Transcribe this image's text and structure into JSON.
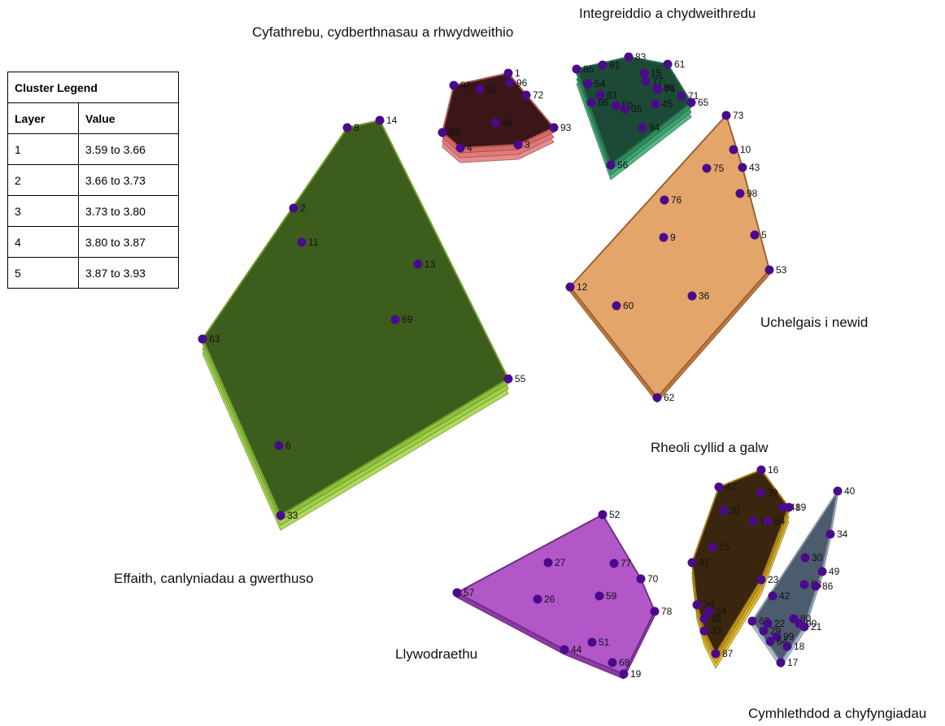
{
  "legend": {
    "title": "Cluster Legend",
    "col_layer": "Layer",
    "col_value": "Value",
    "rows": [
      {
        "layer": "1",
        "value": "3.59 to 3.66"
      },
      {
        "layer": "2",
        "value": "3.66 to 3.73"
      },
      {
        "layer": "3",
        "value": "3.73 to 3.80"
      },
      {
        "layer": "4",
        "value": "3.80 to 3.87"
      },
      {
        "layer": "5",
        "value": "3.87 to 3.93"
      }
    ]
  },
  "colors": {
    "point": "#4b0a8c"
  },
  "clusters": [
    {
      "name": "Cyfathrebu, cydberthnasau a rhwydweithio",
      "fill": "#3a1618",
      "layer_colors": [
        "#d96a6a",
        "#e07b7b",
        "#e88c8c"
      ],
      "points": [
        [
          "82",
          558,
          105
        ],
        [
          "92",
          590,
          110
        ],
        [
          "1",
          625,
          90
        ],
        [
          "96",
          627,
          102
        ],
        [
          "72",
          647,
          117
        ],
        [
          "46",
          609,
          151
        ],
        [
          "93",
          681,
          157
        ],
        [
          "84",
          544,
          163
        ],
        [
          "4",
          566,
          182
        ],
        [
          "3",
          637,
          178
        ]
      ]
    },
    {
      "name": "Integreiddio a chydweithredu",
      "fill": "#1c4a37",
      "layer_colors": [
        "#2e8e5f",
        "#3fa370",
        "#55b886"
      ],
      "points": [
        [
          "85",
          709,
          85
        ],
        [
          "91",
          741,
          80
        ],
        [
          "83",
          773,
          70
        ],
        [
          "61",
          821,
          79
        ],
        [
          "15",
          792,
          90
        ],
        [
          "54",
          723,
          103
        ],
        [
          "77",
          794,
          100
        ],
        [
          "74",
          809,
          110
        ],
        [
          "71",
          838,
          118
        ],
        [
          "65",
          850,
          126
        ],
        [
          "81",
          738,
          117
        ],
        [
          "88",
          808,
          108
        ],
        [
          "86",
          727,
          126
        ],
        [
          "50",
          757,
          130
        ],
        [
          "35",
          768,
          134
        ],
        [
          "45",
          806,
          128
        ],
        [
          "94",
          790,
          157
        ],
        [
          "56",
          751,
          203
        ]
      ]
    },
    {
      "name": "Uchelgais i newid",
      "fill": "#e3a56a",
      "layer_colors": [
        "#c27a3f"
      ],
      "points": [
        [
          "73",
          893,
          142
        ],
        [
          "10",
          902,
          184
        ],
        [
          "75",
          869,
          207
        ],
        [
          "43",
          913,
          206
        ],
        [
          "98",
          910,
          238
        ],
        [
          "76",
          817,
          246
        ],
        [
          "9",
          816,
          292
        ],
        [
          "5",
          928,
          289
        ],
        [
          "53",
          946,
          332
        ],
        [
          "12",
          701,
          353
        ],
        [
          "60",
          758,
          376
        ],
        [
          "36",
          851,
          364
        ],
        [
          "62",
          808,
          489
        ]
      ]
    },
    {
      "name": "Effaith, canlyniadau a gwerthuso",
      "fill": "#3d5d1c",
      "layer_colors": [
        "#8fc43a",
        "#9fd04a",
        "#b0dc5c"
      ],
      "points": [
        [
          "8",
          427,
          157
        ],
        [
          "14",
          467,
          148
        ],
        [
          "2",
          361,
          256
        ],
        [
          "11",
          371,
          298
        ],
        [
          "13",
          514,
          325
        ],
        [
          "69",
          486,
          393
        ],
        [
          "63",
          249,
          417
        ],
        [
          "55",
          625,
          466
        ],
        [
          "6",
          343,
          548
        ],
        [
          "33",
          345,
          634
        ]
      ]
    },
    {
      "name": "Llywodraethu",
      "fill": "#b157c8",
      "layer_colors": [
        "#8f3aa8"
      ],
      "points": [
        [
          "52",
          741,
          633
        ],
        [
          "27",
          674,
          692
        ],
        [
          "77",
          755,
          693
        ],
        [
          "70",
          788,
          712
        ],
        [
          "57",
          562,
          729
        ],
        [
          "26",
          661,
          737
        ],
        [
          "59",
          737,
          733
        ],
        [
          "78",
          805,
          752
        ],
        [
          "51",
          728,
          790
        ],
        [
          "44",
          694,
          799
        ],
        [
          "68",
          753,
          815
        ],
        [
          "19",
          767,
          829
        ]
      ]
    },
    {
      "name": "Rheoli cyllid a galw",
      "fill": "#3a260e",
      "layer_colors": [
        "#c79b1a",
        "#d7ae2a",
        "#e6c23c"
      ],
      "points": [
        [
          "16",
          936,
          578
        ],
        [
          "47",
          884,
          599
        ],
        [
          "39",
          935,
          606
        ],
        [
          "41",
          963,
          624
        ],
        [
          "89",
          970,
          624
        ],
        [
          "31",
          890,
          628
        ],
        [
          "78",
          926,
          641
        ],
        [
          "84",
          944,
          641
        ],
        [
          "25",
          876,
          673
        ],
        [
          "37",
          851,
          692
        ],
        [
          "23",
          936,
          713
        ],
        [
          "28",
          857,
          744
        ],
        [
          "24",
          872,
          752
        ],
        [
          "38",
          866,
          761
        ],
        [
          "32",
          866,
          776
        ],
        [
          "87",
          880,
          804
        ]
      ]
    },
    {
      "name": "Cymhlethdod a chyfyngiadau",
      "fill": "#4c5b6d",
      "layer_colors": [
        "#b0c4d6"
      ],
      "points": [
        [
          "40",
          1030,
          604
        ],
        [
          "34",
          1021,
          657
        ],
        [
          "30",
          990,
          686
        ],
        [
          "49",
          1011,
          703
        ],
        [
          "58",
          989,
          719
        ],
        [
          "86",
          1003,
          721
        ],
        [
          "42",
          950,
          733
        ],
        [
          "80",
          976,
          761
        ],
        [
          "90",
          983,
          767
        ],
        [
          "21",
          989,
          771
        ],
        [
          "68",
          925,
          764
        ],
        [
          "22",
          944,
          767
        ],
        [
          "29",
          939,
          776
        ],
        [
          "99",
          955,
          783
        ],
        [
          "64",
          947,
          789
        ],
        [
          "18",
          968,
          795
        ],
        [
          "17",
          960,
          815
        ]
      ]
    }
  ]
}
